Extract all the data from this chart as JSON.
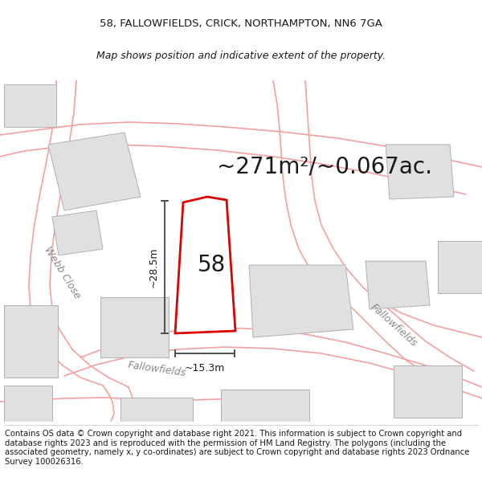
{
  "title_line1": "58, FALLOWFIELDS, CRICK, NORTHAMPTON, NN6 7GA",
  "title_line2": "Map shows position and indicative extent of the property.",
  "area_text": "~271m²/~0.067ac.",
  "label_58": "58",
  "dim_height": "~28.5m",
  "dim_width": "~15.3m",
  "street_fallowfields_bottom": "Fallowfields",
  "street_fallowfields_right": "Fallowfields",
  "street_webb": "Webb Close",
  "footer_text": "Contains OS data © Crown copyright and database right 2021. This information is subject to Crown copyright and database rights 2023 and is reproduced with the permission of HM Land Registry. The polygons (including the associated geometry, namely x, y co-ordinates) are subject to Crown copyright and database rights 2023 Ordnance Survey 100026316.",
  "bg_color": "#ffffff",
  "plot_edge_color": "#dd0000",
  "building_fill_color": "#e0e0e0",
  "building_edge_color": "#b0b0b0",
  "road_line_color": "#f0a0a0",
  "road_outline_color": "#d08080",
  "dim_line_color": "#444444",
  "text_color": "#1a1a1a",
  "street_text_color": "#888888",
  "title_fontsize": 9.5,
  "area_fontsize": 20,
  "footer_fontsize": 7.2,
  "label_fontsize": 20,
  "street_fontsize": 9,
  "dim_fontsize": 9
}
